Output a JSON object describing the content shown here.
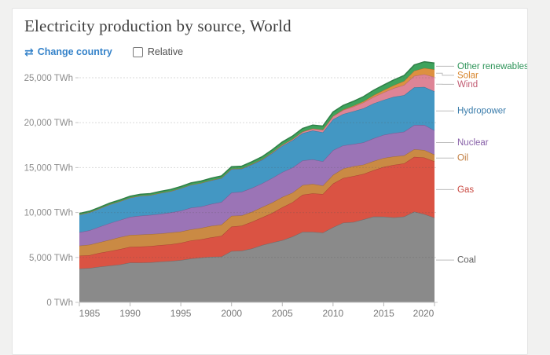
{
  "header": {
    "title": "Electricity production by source, World"
  },
  "controls": {
    "change_country_label": "Change country",
    "relative_label": "Relative",
    "link_color": "#3482c9",
    "swap_icon": "⇄"
  },
  "chart_data": {
    "type": "area",
    "stacked": true,
    "title": "Electricity production by source, World",
    "unit": "TWh",
    "grid": "dashed",
    "legend_position": "right",
    "xlabel": "",
    "ylabel": "",
    "ylim": [
      0,
      25000
    ],
    "x": [
      1985,
      1986,
      1987,
      1988,
      1989,
      1990,
      1991,
      1992,
      1993,
      1994,
      1995,
      1996,
      1997,
      1998,
      1999,
      2000,
      2001,
      2002,
      2003,
      2004,
      2005,
      2006,
      2007,
      2008,
      2009,
      2010,
      2011,
      2012,
      2013,
      2014,
      2015,
      2016,
      2017,
      2018,
      2019,
      2020
    ],
    "x_ticks": [
      1985,
      1990,
      1995,
      2000,
      2005,
      2010,
      2015,
      2020
    ],
    "y_ticks": {
      "values": [
        0,
        5000,
        10000,
        15000,
        20000,
        25000
      ],
      "labels": [
        "0 TWh",
        "5,000 TWh",
        "10,000 TWh",
        "15,000 TWh",
        "20,000 TWh",
        "25,000 TWh"
      ]
    },
    "series": [
      {
        "name": "Coal",
        "color": "#8a8a8a",
        "label_color": "#5e5e5e",
        "values": [
          3758,
          3808,
          3969,
          4084,
          4202,
          4426,
          4415,
          4452,
          4538,
          4594,
          4695,
          4878,
          4980,
          5067,
          5097,
          5712,
          5744,
          5990,
          6371,
          6649,
          6916,
          7313,
          7845,
          7839,
          7752,
          8358,
          8868,
          8946,
          9227,
          9545,
          9538,
          9450,
          9546,
          10097,
          9824,
          9421
        ]
      },
      {
        "name": "Gas",
        "color": "#da5343",
        "label_color": "#c9473f",
        "values": [
          1437,
          1441,
          1538,
          1615,
          1727,
          1748,
          1789,
          1807,
          1832,
          1864,
          1932,
          2012,
          2043,
          2158,
          2302,
          2725,
          2787,
          2966,
          3074,
          3292,
          3657,
          3820,
          4129,
          4298,
          4299,
          4855,
          4966,
          5110,
          5066,
          5155,
          5543,
          5850,
          5915,
          6091,
          6298,
          6268
        ]
      },
      {
        "name": "Oil",
        "color": "#ca8a44",
        "label_color": "#c07c3e",
        "values": [
          1110,
          1168,
          1178,
          1259,
          1326,
          1325,
          1336,
          1333,
          1283,
          1316,
          1245,
          1235,
          1252,
          1287,
          1242,
          1186,
          1140,
          1109,
          1152,
          1161,
          1149,
          1064,
          1068,
          1034,
          940,
          965,
          1051,
          1093,
          1028,
          1023,
          989,
          931,
          884,
          846,
          825,
          753
        ]
      },
      {
        "name": "Nuclear",
        "color": "#9b74b6",
        "label_color": "#8861a8",
        "values": [
          1489,
          1593,
          1735,
          1850,
          1909,
          2001,
          2105,
          2125,
          2186,
          2225,
          2321,
          2407,
          2390,
          2431,
          2522,
          2591,
          2637,
          2660,
          2635,
          2738,
          2768,
          2793,
          2748,
          2739,
          2697,
          2756,
          2584,
          2461,
          2478,
          2535,
          2571,
          2612,
          2639,
          2701,
          2796,
          2693
        ]
      },
      {
        "name": "Hydropower",
        "color": "#4397c3",
        "label_color": "#3a7cab",
        "values": [
          1979,
          2006,
          2033,
          2093,
          2088,
          2144,
          2215,
          2216,
          2337,
          2374,
          2497,
          2551,
          2620,
          2640,
          2661,
          2619,
          2560,
          2610,
          2632,
          2759,
          2933,
          3035,
          3035,
          3208,
          3237,
          3437,
          3490,
          3646,
          3794,
          3885,
          3892,
          4036,
          4065,
          4193,
          4222,
          4347
        ]
      },
      {
        "name": "Wind",
        "color": "#de8496",
        "label_color": "#c25b72",
        "values": [
          0,
          0,
          0,
          1,
          2,
          4,
          4,
          5,
          6,
          7,
          8,
          9,
          12,
          16,
          21,
          31,
          38,
          52,
          63,
          85,
          104,
          133,
          171,
          221,
          276,
          342,
          437,
          523,
          646,
          712,
          831,
          957,
          1136,
          1269,
          1420,
          1590
        ]
      },
      {
        "name": "Solar",
        "color": "#dd9040",
        "label_color": "#d8872f",
        "values": [
          0,
          0,
          0,
          0,
          0,
          0,
          0,
          0,
          0,
          0,
          0,
          0,
          0,
          0,
          1,
          1,
          1,
          2,
          2,
          3,
          4,
          5,
          7,
          12,
          20,
          32,
          63,
          97,
          132,
          198,
          256,
          328,
          445,
          574,
          699,
          844
        ]
      },
      {
        "name": "Other renewables",
        "color": "#3ea35c",
        "label_color": "#2e9459",
        "values": [
          128,
          132,
          137,
          143,
          152,
          160,
          166,
          173,
          180,
          187,
          195,
          202,
          210,
          218,
          230,
          240,
          250,
          265,
          280,
          300,
          320,
          340,
          360,
          385,
          405,
          440,
          465,
          500,
          530,
          555,
          572,
          600,
          625,
          650,
          690,
          721
        ]
      }
    ]
  }
}
